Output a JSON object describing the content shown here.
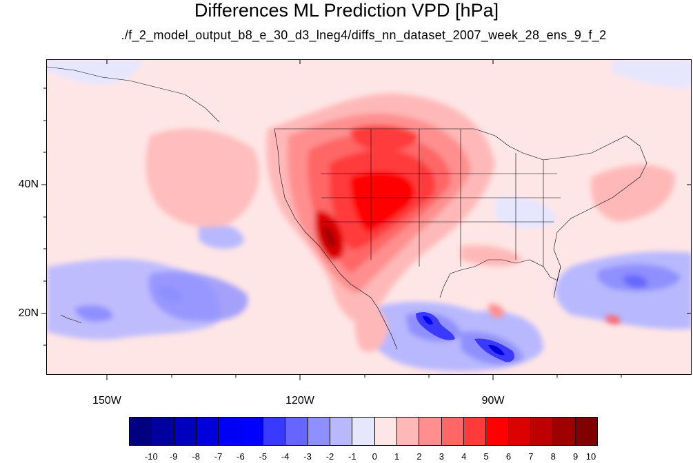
{
  "title": "Differences ML Prediction VPD [hPa]",
  "subtitle": "./f_2_model_output_b8_e_30_d3_lneg4/diffs_nn_dataset_2007_week_28_ens_9_f_2",
  "map": {
    "projection": "cylindrical-equidistant",
    "lon_range": [
      -160,
      -60
    ],
    "lat_range": [
      11,
      60
    ],
    "lat_ticks": [
      20,
      40
    ],
    "lat_tick_labels": [
      "20N",
      "40N"
    ],
    "lon_ticks": [
      -150,
      -120,
      -90
    ],
    "lon_tick_labels": [
      "150W",
      "120W",
      "90W"
    ],
    "field": "VPD difference",
    "background_color": "#FFE6E6"
  },
  "colorbar": {
    "levels": [
      -10,
      -9,
      -8,
      -7,
      -6,
      -5,
      -4,
      -3,
      -2,
      -1,
      0,
      1,
      2,
      3,
      4,
      5,
      6,
      7,
      8,
      9,
      10
    ],
    "labels": [
      "-10",
      "-9",
      "-8",
      "-7",
      "-6",
      "-5",
      "-4",
      "-3",
      "-2",
      "-1",
      "0",
      "1",
      "2",
      "3",
      "4",
      "5",
      "6",
      "7",
      "8",
      "9",
      "10"
    ],
    "colors": [
      "#000080",
      "#00009E",
      "#0000BE",
      "#0000DC",
      "#0000F5",
      "#0000FF",
      "#3A3AFF",
      "#6666FF",
      "#8F8FFF",
      "#B8B8FF",
      "#E6E6FF",
      "#FFE6E6",
      "#FFB8B8",
      "#FF8F8F",
      "#FF6666",
      "#FF3A3A",
      "#FF0000",
      "#DC0000",
      "#BE0000",
      "#9E0000",
      "#800000"
    ]
  }
}
